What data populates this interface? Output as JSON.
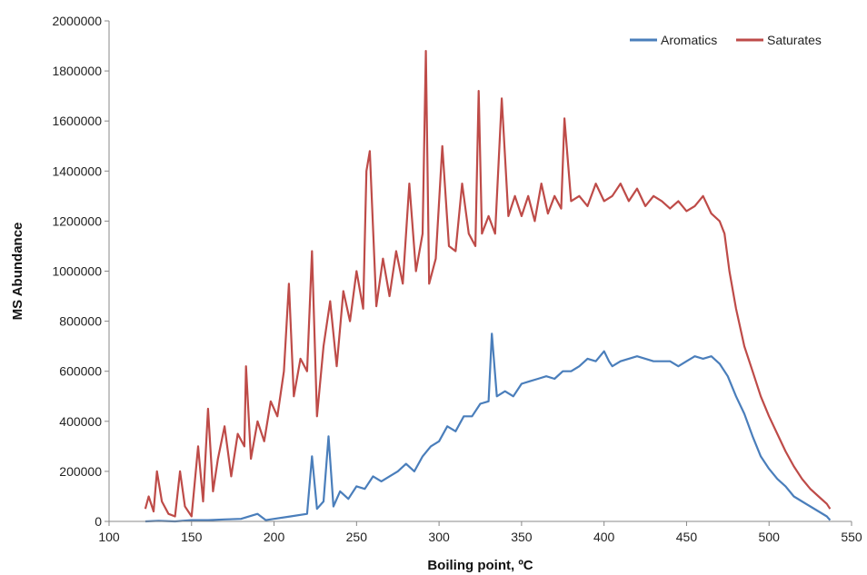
{
  "chart_data": {
    "type": "line",
    "title": "",
    "xlabel": "Boiling point, ºC",
    "ylabel": "MS Abundance",
    "xlim": [
      100,
      550
    ],
    "ylim": [
      0,
      2000000
    ],
    "x_ticks": [
      "100",
      "150",
      "200",
      "250",
      "300",
      "350",
      "400",
      "450",
      "500",
      "550"
    ],
    "y_ticks": [
      "0",
      "200000",
      "400000",
      "600000",
      "800000",
      "1000000",
      "1200000",
      "1400000",
      "1600000",
      "1800000",
      "2000000"
    ],
    "grid": false,
    "legend_position": "top-right",
    "series": [
      {
        "name": "Aromatics",
        "color": "#4a7ebb",
        "x": [
          122,
          130,
          140,
          150,
          160,
          170,
          180,
          190,
          195,
          200,
          210,
          220,
          223,
          226,
          230,
          233,
          236,
          240,
          245,
          250,
          255,
          260,
          265,
          270,
          275,
          280,
          285,
          290,
          295,
          300,
          305,
          310,
          315,
          320,
          325,
          330,
          332,
          335,
          340,
          345,
          350,
          355,
          360,
          365,
          370,
          375,
          380,
          385,
          390,
          395,
          400,
          403,
          405,
          410,
          415,
          420,
          425,
          430,
          435,
          440,
          445,
          450,
          455,
          460,
          465,
          470,
          475,
          480,
          485,
          490,
          495,
          500,
          505,
          510,
          515,
          520,
          525,
          530,
          535,
          537
        ],
        "y": [
          0,
          2000,
          0,
          5000,
          5000,
          8000,
          10000,
          30000,
          5000,
          10000,
          20000,
          30000,
          260000,
          50000,
          80000,
          340000,
          60000,
          120000,
          90000,
          140000,
          130000,
          180000,
          160000,
          180000,
          200000,
          230000,
          200000,
          260000,
          300000,
          320000,
          380000,
          360000,
          420000,
          420000,
          470000,
          480000,
          750000,
          500000,
          520000,
          500000,
          550000,
          560000,
          570000,
          580000,
          570000,
          600000,
          600000,
          620000,
          650000,
          640000,
          680000,
          640000,
          620000,
          640000,
          650000,
          660000,
          650000,
          640000,
          640000,
          640000,
          620000,
          640000,
          660000,
          650000,
          660000,
          630000,
          580000,
          500000,
          430000,
          340000,
          260000,
          210000,
          170000,
          140000,
          100000,
          80000,
          60000,
          40000,
          20000,
          5000
        ]
      },
      {
        "name": "Saturates",
        "color": "#be4b48",
        "x": [
          122,
          124,
          127,
          129,
          132,
          136,
          140,
          143,
          146,
          150,
          154,
          157,
          160,
          163,
          166,
          170,
          174,
          178,
          182,
          183,
          186,
          190,
          194,
          198,
          202,
          206,
          209,
          212,
          216,
          220,
          223,
          226,
          230,
          234,
          238,
          242,
          246,
          250,
          254,
          256,
          258,
          262,
          266,
          270,
          274,
          278,
          282,
          286,
          290,
          292,
          294,
          298,
          302,
          306,
          310,
          314,
          318,
          322,
          324,
          326,
          330,
          334,
          338,
          342,
          346,
          350,
          354,
          358,
          362,
          366,
          370,
          374,
          376,
          380,
          385,
          390,
          395,
          400,
          405,
          410,
          415,
          420,
          425,
          430,
          435,
          440,
          445,
          450,
          455,
          460,
          465,
          470,
          473,
          476,
          480,
          485,
          490,
          495,
          500,
          505,
          510,
          515,
          520,
          525,
          530,
          535,
          537
        ],
        "y": [
          50000,
          100000,
          40000,
          200000,
          80000,
          30000,
          20000,
          200000,
          60000,
          20000,
          300000,
          80000,
          450000,
          120000,
          250000,
          380000,
          180000,
          350000,
          300000,
          620000,
          250000,
          400000,
          320000,
          480000,
          420000,
          600000,
          950000,
          500000,
          650000,
          600000,
          1080000,
          420000,
          700000,
          880000,
          620000,
          920000,
          800000,
          1000000,
          850000,
          1400000,
          1480000,
          860000,
          1050000,
          900000,
          1080000,
          950000,
          1350000,
          1000000,
          1150000,
          1880000,
          950000,
          1050000,
          1500000,
          1100000,
          1080000,
          1350000,
          1150000,
          1100000,
          1720000,
          1150000,
          1220000,
          1150000,
          1690000,
          1220000,
          1300000,
          1220000,
          1300000,
          1200000,
          1350000,
          1230000,
          1300000,
          1250000,
          1610000,
          1280000,
          1300000,
          1260000,
          1350000,
          1280000,
          1300000,
          1350000,
          1280000,
          1330000,
          1260000,
          1300000,
          1280000,
          1250000,
          1280000,
          1240000,
          1260000,
          1300000,
          1230000,
          1200000,
          1150000,
          1000000,
          850000,
          700000,
          600000,
          500000,
          420000,
          350000,
          280000,
          220000,
          170000,
          130000,
          100000,
          70000,
          50000
        ]
      }
    ]
  }
}
